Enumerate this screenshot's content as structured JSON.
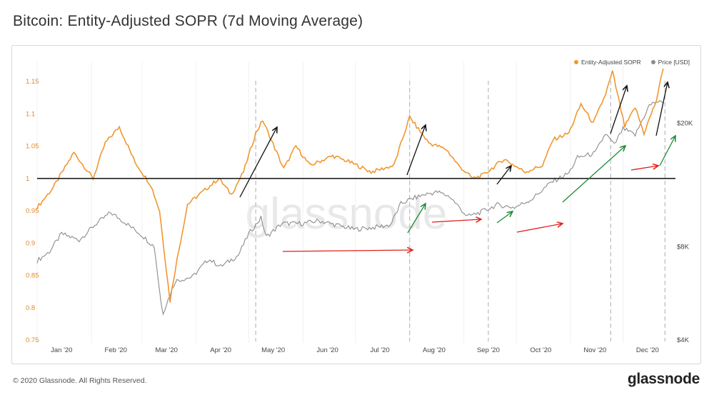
{
  "title": "Bitcoin: Entity-Adjusted SOPR (7d Moving Average)",
  "footer": "© 2020 Glassnode. All Rights Reserved.",
  "brand": "glassnode",
  "watermark": "glassnode",
  "colors": {
    "sopr": "#f0972f",
    "price": "#8c8c8c",
    "baseline": "#222222",
    "up": "#111111",
    "green": "#1e8a33",
    "red": "#e0201b",
    "marker": "#bbbbbb"
  },
  "chart_data": {
    "type": "line",
    "title": "Bitcoin: Entity-Adjusted SOPR (7d Moving Average)",
    "x_axis": {
      "type": "date",
      "range": [
        "2020-01-01",
        "2020-12-31"
      ],
      "ticks": [
        "Jan '20",
        "Feb '20",
        "Mar '20",
        "Apr '20",
        "May '20",
        "Jun '20",
        "Jul '20",
        "Aug '20",
        "Sep '20",
        "Oct '20",
        "Nov '20",
        "Dec '20"
      ]
    },
    "y_left": {
      "ylim": [
        0.75,
        1.17
      ],
      "ticks": [
        "0.75",
        "0.8",
        "0.85",
        "0.9",
        "0.95",
        "1",
        "1.05",
        "1.1",
        "1.15"
      ]
    },
    "y_right": {
      "scale": "log",
      "ticks": [
        "$4K",
        "$8K",
        "$20K"
      ]
    },
    "series": [
      {
        "name": "Entity-Adjusted SOPR",
        "axis": "left",
        "x": [
          "2020-01-01",
          "2020-01-10",
          "2020-01-22",
          "2020-02-02",
          "2020-02-09",
          "2020-02-17",
          "2020-02-26",
          "2020-03-06",
          "2020-03-11",
          "2020-03-14",
          "2020-03-17",
          "2020-03-20",
          "2020-03-27",
          "2020-04-05",
          "2020-04-14",
          "2020-04-21",
          "2020-04-28",
          "2020-05-05",
          "2020-05-09",
          "2020-05-21",
          "2020-05-28",
          "2020-06-05",
          "2020-06-18",
          "2020-06-28",
          "2020-07-10",
          "2020-07-23",
          "2020-08-01",
          "2020-08-05",
          "2020-08-12",
          "2020-08-22",
          "2020-08-29",
          "2020-09-06",
          "2020-09-12",
          "2020-09-24",
          "2020-10-06",
          "2020-10-16",
          "2020-10-22",
          "2020-10-31",
          "2020-11-07",
          "2020-11-14",
          "2020-11-21",
          "2020-11-25",
          "2020-12-02",
          "2020-12-08",
          "2020-12-13",
          "2020-12-20",
          "2020-12-24"
        ],
        "values": [
          0.955,
          0.985,
          1.04,
          1.0,
          1.055,
          1.08,
          1.025,
          0.99,
          0.95,
          0.88,
          0.81,
          0.86,
          0.96,
          0.98,
          1.0,
          0.975,
          1.01,
          1.07,
          1.09,
          1.015,
          1.05,
          1.02,
          1.035,
          1.025,
          1.01,
          1.02,
          1.095,
          1.08,
          1.055,
          1.045,
          1.02,
          1.0,
          1.005,
          1.03,
          1.01,
          1.02,
          1.06,
          1.07,
          1.115,
          1.085,
          1.13,
          1.165,
          1.08,
          1.11,
          1.07,
          1.12,
          1.17
        ]
      },
      {
        "name": "Price [USD]",
        "axis": "right",
        "x": [
          "2020-01-01",
          "2020-01-08",
          "2020-01-15",
          "2020-01-25",
          "2020-02-03",
          "2020-02-12",
          "2020-02-20",
          "2020-03-01",
          "2020-03-08",
          "2020-03-12",
          "2020-03-13",
          "2020-03-20",
          "2020-03-30",
          "2020-04-08",
          "2020-04-15",
          "2020-04-25",
          "2020-05-01",
          "2020-05-08",
          "2020-05-11",
          "2020-05-20",
          "2020-06-01",
          "2020-06-10",
          "2020-06-20",
          "2020-06-30",
          "2020-07-10",
          "2020-07-21",
          "2020-07-27",
          "2020-08-02",
          "2020-08-10",
          "2020-08-17",
          "2020-08-24",
          "2020-09-03",
          "2020-09-10",
          "2020-09-20",
          "2020-09-30",
          "2020-10-10",
          "2020-10-21",
          "2020-10-31",
          "2020-11-05",
          "2020-11-15",
          "2020-11-21",
          "2020-11-26",
          "2020-12-01",
          "2020-12-08",
          "2020-12-16",
          "2020-12-20",
          "2020-12-24"
        ],
        "values": [
          7200,
          7700,
          8800,
          8400,
          9400,
          10300,
          9600,
          8700,
          8000,
          5200,
          4900,
          6200,
          6400,
          7300,
          6900,
          7500,
          8800,
          9900,
          8600,
          9500,
          9500,
          9700,
          9400,
          9100,
          9200,
          9400,
          11000,
          11400,
          11800,
          12000,
          11600,
          10000,
          10300,
          10900,
          10700,
          11400,
          12900,
          13800,
          15500,
          16000,
          18500,
          17000,
          19200,
          18300,
          22800,
          23500,
          23200
        ]
      }
    ]
  }
}
